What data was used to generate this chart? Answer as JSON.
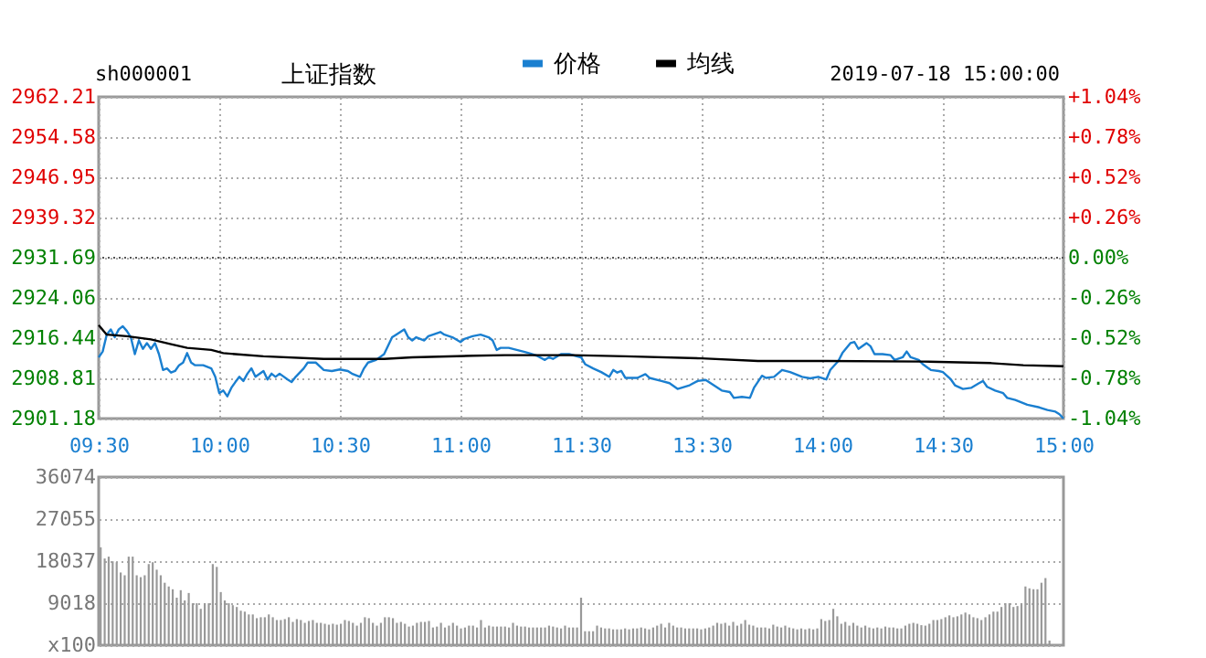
{
  "chart_data": [
    {
      "type": "line",
      "title": "上证指数",
      "annotations": [
        "sh000001",
        "2019-07-18 15:00:00"
      ],
      "legend": "top",
      "grid": true,
      "categories": [
        "09:30",
        null,
        null,
        null,
        null,
        null,
        null,
        null,
        null,
        null,
        null,
        null,
        null,
        null,
        null,
        null,
        null,
        null,
        null,
        null,
        null,
        null,
        null,
        null,
        null,
        null,
        null,
        null,
        null,
        null,
        "10:00",
        null,
        null,
        null,
        null,
        null,
        null,
        null,
        null,
        null,
        null,
        null,
        null,
        null,
        null,
        null,
        null,
        null,
        null,
        null,
        null,
        null,
        null,
        null,
        null,
        null,
        null,
        null,
        null,
        null,
        "10:30",
        null,
        null,
        null,
        null,
        null,
        null,
        null,
        null,
        null,
        null,
        null,
        null,
        null,
        null,
        null,
        null,
        null,
        null,
        null,
        null,
        null,
        null,
        null,
        null,
        null,
        null,
        null,
        null,
        null,
        "11:00",
        null,
        null,
        null,
        null,
        null,
        null,
        null,
        null,
        null,
        null,
        null,
        null,
        null,
        null,
        null,
        null,
        null,
        null,
        null,
        null,
        null,
        null,
        null,
        null,
        null,
        null,
        null,
        null,
        null,
        "11:30",
        null,
        null,
        null,
        null,
        null,
        null,
        null,
        null,
        null,
        null,
        null,
        null,
        null,
        null,
        null,
        null,
        null,
        null,
        null,
        null,
        null,
        null,
        null,
        null,
        null,
        null,
        null,
        null,
        null,
        "13:30",
        null,
        null,
        null,
        null,
        null,
        null,
        null,
        null,
        null,
        null,
        null,
        null,
        null,
        null,
        null,
        null,
        null,
        null,
        null,
        null,
        null,
        null,
        null,
        null,
        null,
        null,
        null,
        null,
        null,
        "14:00",
        null,
        null,
        null,
        null,
        null,
        null,
        null,
        null,
        null,
        null,
        null,
        null,
        null,
        null,
        null,
        null,
        null,
        null,
        null,
        null,
        null,
        null,
        null,
        null,
        null,
        null,
        null,
        null,
        null,
        "14:30",
        null,
        null,
        null,
        null,
        null,
        null,
        null,
        null,
        null,
        null,
        null,
        null,
        null,
        null,
        null,
        null,
        null,
        null,
        null,
        null,
        null,
        null,
        null,
        null,
        null,
        null,
        null,
        null,
        null,
        "15:00"
      ],
      "ylim": [
        2901.18,
        2962.21
      ],
      "yticks": [
        2901.18,
        2908.81,
        2916.44,
        2924.06,
        2931.69,
        2939.32,
        2946.95,
        2954.58,
        2962.21
      ],
      "y2lim": [
        -1.04,
        1.04
      ],
      "y2ticks": [
        {
          "value": -1.04,
          "label": "-1.04%"
        },
        {
          "value": -0.78,
          "label": "-0.78%"
        },
        {
          "value": -0.52,
          "label": "-0.52%"
        },
        {
          "value": -0.26,
          "label": "-0.26%"
        },
        {
          "value": 0,
          "label": "0.00%"
        },
        {
          "value": 0.26,
          "label": "+0.26%"
        },
        {
          "value": 0.52,
          "label": "+0.52%"
        },
        {
          "value": 0.78,
          "label": "+0.78%"
        },
        {
          "value": 1.04,
          "label": "+1.04%"
        }
      ],
      "ref_lines": [
        {
          "axis": "y",
          "value": 2931.69,
          "color": "#555555",
          "line_style": "dotted"
        }
      ],
      "series": [
        {
          "name": "价格",
          "color": "#1a7fd0",
          "values": [
            2912.8,
            2913.9,
            2917.1,
            2918.1,
            2916.6,
            2918.1,
            2918.7,
            2917.8,
            2916.6,
            2913.4,
            2916.0,
            2914.4,
            2915.5,
            2914.4,
            2915.5,
            2913.4,
            2910.4,
            2910.7,
            2909.9,
            2910.2,
            2911.3,
            2911.8,
            2913.6,
            2911.8,
            2911.3,
            null,
            2911.3,
            null,
            2910.7,
            2909.1,
            2906.0,
            2906.5,
            2905.4,
            2907.0,
            2908.1,
            2909.1,
            2908.3,
            2909.7,
            2910.7,
            2909.1,
            null,
            2910.2,
            2908.6,
            2909.7,
            2909.1,
            2909.7,
            null,
            2908.6,
            2908.1,
            2909.1,
            null,
            2910.7,
            2911.8,
            null,
            2911.8,
            null,
            2910.4,
            null,
            2910.2,
            null,
            2910.5,
            null,
            2910.2,
            2909.7,
            null,
            2909.1,
            2910.7,
            2911.8,
            null,
            2912.3,
            null,
            2913.4,
            2915.0,
            2916.6,
            2917.1,
            null,
            2918.1,
            2916.6,
            2916.0,
            2916.6,
            null,
            2916.0,
            2916.8,
            null,
            null,
            2917.6,
            2917.1,
            null,
            2916.6,
            null,
            2915.7,
            2916.3,
            null,
            2916.8,
            null,
            2917.1,
            null,
            2916.6,
            2916.0,
            2914.2,
            2914.6,
            null,
            2914.6,
            null,
            2914.2,
            null,
            2913.8,
            2913.6,
            null,
            2913.1,
            null,
            2912.3,
            2912.8,
            2912.5,
            null,
            2913.4,
            null,
            2913.4,
            null,
            null,
            2912.8,
            2911.5,
            null,
            2910.7,
            null,
            2910.0,
            null,
            2909.1,
            2910.4,
            2909.9,
            2910.2,
            2908.9,
            null,
            null,
            2908.9,
            null,
            2909.6,
            2908.9,
            null,
            null,
            2908.3,
            null,
            2907.9,
            null,
            2906.8,
            null,
            null,
            2907.5,
            null,
            2908.3,
            null,
            2908.5,
            null,
            2907.5,
            null,
            2906.5,
            null,
            2906.2,
            2905.1,
            null,
            2905.3,
            null,
            2905.1,
            2907.0,
            null,
            2909.3,
            2908.9,
            null,
            2909.1,
            null,
            2910.4,
            null,
            2910.0,
            null,
            null,
            2909.1,
            null,
            2908.8,
            null,
            2909.1,
            null,
            2908.6,
            2910.4,
            null,
            2912.1,
            2913.6,
            null,
            2915.5,
            2915.7,
            2914.4,
            null,
            2915.5,
            2914.9,
            2913.4,
            null,
            2913.4,
            null,
            2913.2,
            2912.3,
            null,
            2912.8,
            2913.9,
            2912.8,
            null,
            2912.3,
            2911.5,
            null,
            2910.4,
            null,
            2910.2,
            2910.0,
            null,
            2908.6,
            2907.5,
            null,
            2906.8,
            null,
            2907.0,
            null,
            2907.9,
            2908.3,
            2907.2,
            null,
            2906.5,
            null,
            2906.0,
            2905.1,
            null,
            2904.7,
            2904.4,
            null,
            2903.8,
            null,
            null,
            2903.3,
            null,
            2902.8,
            null,
            2902.5,
            2902.0,
            2901.2
          ]
        },
        {
          "name": "均线",
          "color": "#000000",
          "values": [
            2918.9,
            null,
            2917.1,
            null,
            null,
            null,
            null,
            2916.8,
            null,
            null,
            null,
            null,
            null,
            2916.2,
            null,
            null,
            null,
            null,
            2915.3,
            null,
            null,
            null,
            2914.6,
            null,
            null,
            null,
            null,
            null,
            2914.2,
            null,
            null,
            2913.6,
            null,
            null,
            2913.4,
            null,
            null,
            null,
            null,
            null,
            null,
            2913.0,
            null,
            null,
            null,
            null,
            null,
            null,
            null,
            null,
            null,
            null,
            null,
            null,
            null,
            null,
            2912.5,
            null,
            null,
            null,
            null,
            null,
            null,
            null,
            null,
            null,
            null,
            null,
            null,
            null,
            null,
            2912.5,
            null,
            null,
            null,
            null,
            null,
            null,
            2912.8,
            null,
            null,
            null,
            null,
            null,
            null,
            null,
            null,
            null,
            null,
            null,
            null,
            null,
            null,
            2913.1,
            null,
            null,
            null,
            null,
            null,
            null,
            null,
            2913.2,
            null,
            null,
            null,
            null,
            null,
            null,
            null,
            null,
            null,
            null,
            null,
            null,
            null,
            null,
            null,
            null,
            2913.2,
            null,
            null,
            null,
            null,
            null,
            null,
            null,
            null,
            null,
            null,
            null,
            null,
            2913.0,
            null,
            null,
            null,
            null,
            null,
            null,
            null,
            null,
            null,
            null,
            null,
            null,
            null,
            null,
            null,
            null,
            null,
            null,
            2912.6,
            null,
            null,
            null,
            null,
            null,
            null,
            null,
            null,
            null,
            null,
            null,
            null,
            null,
            2912.1,
            null,
            null,
            null,
            null,
            null,
            null,
            null,
            null,
            null,
            null,
            null,
            null,
            null,
            null,
            null,
            null,
            2912.1,
            null,
            null,
            null,
            null,
            null,
            null,
            null,
            null,
            null,
            null,
            null,
            null,
            null,
            null,
            null,
            null,
            null,
            null,
            null,
            null,
            null,
            null,
            null,
            2912.0,
            null,
            null,
            null,
            null,
            null,
            null,
            null,
            null,
            null,
            null,
            null,
            null,
            null,
            null,
            null,
            null,
            2911.7,
            null,
            null,
            null,
            null,
            null,
            null,
            null,
            2911.3,
            null,
            null,
            null,
            null,
            null,
            null,
            null,
            null,
            null,
            2911.1
          ]
        }
      ]
    },
    {
      "type": "bar",
      "grid": "y",
      "tick_labels": "y",
      "categories": [
        null,
        null,
        null,
        null,
        null,
        null,
        null,
        null,
        null,
        null,
        null,
        null,
        null,
        null,
        null,
        null,
        null,
        null,
        null,
        null,
        null,
        null,
        null,
        null,
        null,
        null,
        null,
        null,
        null,
        null,
        null,
        null,
        null,
        null,
        null,
        null,
        null,
        null,
        null,
        null,
        null,
        null,
        null,
        null,
        null,
        null,
        null,
        null,
        null,
        null,
        null,
        null,
        null,
        null,
        null,
        null,
        null,
        null,
        null,
        null,
        null,
        null,
        null,
        null,
        null,
        null,
        null,
        null,
        null,
        null,
        null,
        null,
        null,
        null,
        null,
        null,
        null,
        null,
        null,
        null,
        null,
        null,
        null,
        null,
        null,
        null,
        null,
        null,
        null,
        null,
        null,
        null,
        null,
        null,
        null,
        null,
        null,
        null,
        null,
        null,
        null,
        null,
        null,
        null,
        null,
        null,
        null,
        null,
        null,
        null,
        null,
        null,
        null,
        null,
        null,
        null,
        null,
        null,
        null,
        null,
        null,
        null,
        null,
        null,
        null,
        null,
        null,
        null,
        null,
        null,
        null,
        null,
        null,
        null,
        null,
        null,
        null,
        null,
        null,
        null,
        null,
        null,
        null,
        null,
        null,
        null,
        null,
        null,
        null,
        null,
        null,
        null,
        null,
        null,
        null,
        null,
        null,
        null,
        null,
        null,
        null,
        null,
        null,
        null,
        null,
        null,
        null,
        null,
        null,
        null,
        null,
        null,
        null,
        null,
        null,
        null,
        null,
        null,
        null,
        null,
        null,
        null,
        null,
        null,
        null,
        null,
        null,
        null,
        null,
        null,
        null,
        null,
        null,
        null,
        null,
        null,
        null,
        null,
        null,
        null,
        null,
        null,
        null,
        null,
        null,
        null,
        null,
        null,
        null,
        null,
        null,
        null,
        null,
        null,
        null,
        null,
        null,
        null,
        null,
        null,
        null,
        null,
        null,
        null,
        null,
        null,
        null,
        null,
        null,
        null,
        null,
        null,
        null,
        null,
        null,
        null,
        null,
        null,
        null,
        null,
        null
      ],
      "ylim": [
        0,
        36074
      ],
      "yticks": [
        {
          "value": 0,
          "label": "x100"
        },
        9018,
        18037,
        27055,
        36074
      ],
      "series": [
        {
          "color": "#999999",
          "values": [
            21000,
            18600,
            19000,
            18000,
            17800,
            15600,
            15000,
            19000,
            19000,
            15000,
            14600,
            15000,
            17400,
            17800,
            16200,
            15000,
            13400,
            12600,
            12000,
            10200,
            11800,
            9600,
            11200,
            9000,
            9000,
            7800,
            9000,
            9000,
            17400,
            16800,
            11400,
            9600,
            9000,
            8600,
            8200,
            7400,
            7200,
            6600,
            6600,
            5800,
            6000,
            6000,
            6600,
            6000,
            5400,
            5400,
            5600,
            6000,
            5000,
            5600,
            5400,
            4800,
            5200,
            5400,
            4800,
            4800,
            4600,
            4400,
            4600,
            4400,
            4600,
            5400,
            5200,
            4800,
            4200,
            4800,
            6000,
            5800,
            4800,
            4200,
            4800,
            6000,
            6000,
            5800,
            4800,
            5000,
            4600,
            4000,
            4200,
            4800,
            5000,
            5000,
            5200,
            3800,
            4000,
            4800,
            3800,
            4200,
            4800,
            4200,
            3600,
            3800,
            4200,
            4200,
            3800,
            5400,
            3800,
            4200,
            4000,
            4000,
            4000,
            4000,
            3800,
            4800,
            4200,
            4000,
            4000,
            3800,
            3800,
            3800,
            3800,
            3800,
            4200,
            4000,
            3800,
            3600,
            4200,
            3800,
            3800,
            3800,
            10200,
            3000,
            3000,
            3000,
            4200,
            3800,
            3600,
            3600,
            3400,
            3400,
            3400,
            3600,
            3400,
            3600,
            3600,
            3800,
            3600,
            3400,
            3800,
            4200,
            4600,
            3800,
            4800,
            4200,
            3800,
            3800,
            3600,
            3600,
            3600,
            3600,
            3400,
            3600,
            3800,
            4200,
            4800,
            4600,
            4800,
            4200,
            5000,
            4200,
            4600,
            5400,
            4400,
            4200,
            3800,
            3800,
            3800,
            3600,
            4400,
            4000,
            3800,
            4200,
            3800,
            3600,
            3400,
            3600,
            3400,
            3600,
            3400,
            3600,
            5600,
            5200,
            5400,
            7800,
            6200,
            4600,
            5000,
            4200,
            4800,
            4200,
            3800,
            4200,
            3800,
            3600,
            3800,
            3600,
            4000,
            3800,
            3800,
            3600,
            3600,
            4200,
            4600,
            4800,
            4600,
            4300,
            4200,
            4600,
            5400,
            5400,
            5600,
            6000,
            6400,
            6000,
            6200,
            6600,
            7000,
            6600,
            6000,
            5800,
            5400,
            6000,
            6600,
            7200,
            7200,
            8200,
            9000,
            9000,
            8200,
            8400,
            9000,
            12600,
            12200,
            12000,
            12000,
            13400,
            14400,
            1000,
            null,
            null,
            null
          ]
        }
      ]
    }
  ]
}
